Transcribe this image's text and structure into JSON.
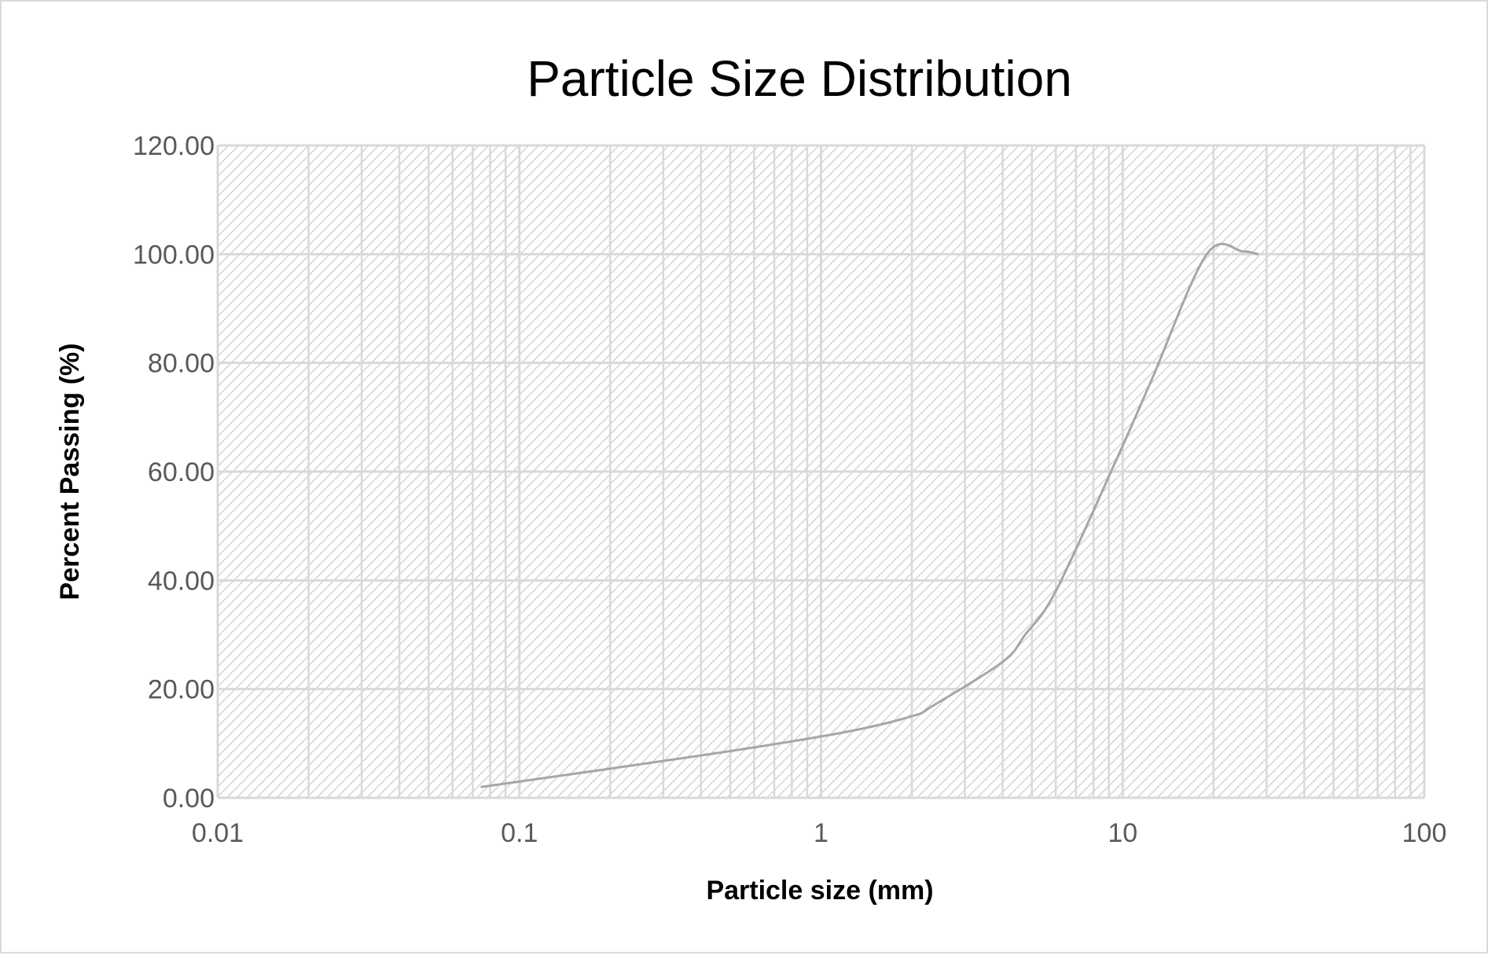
{
  "chart_data": {
    "type": "line",
    "title": "Particle Size Distribution",
    "xlabel": "Particle size (mm)",
    "ylabel": "Percent Passing (%)",
    "x_scale": "log",
    "xlim": [
      0.01,
      100
    ],
    "ylim": [
      0,
      120
    ],
    "x_ticks": [
      0.01,
      0.1,
      1,
      10,
      100
    ],
    "x_tick_labels": [
      "0.01",
      "0.1",
      "1",
      "10",
      "100"
    ],
    "y_ticks": [
      0,
      20,
      40,
      60,
      80,
      100,
      120
    ],
    "y_tick_labels": [
      "0.00",
      "20.00",
      "40.00",
      "60.00",
      "80.00",
      "100.00",
      "120.00"
    ],
    "grid": true,
    "minor_grid": true,
    "legend": "none",
    "plot_fill": "diagonal hatch",
    "series": [
      {
        "color": "#a6a6a6",
        "smooth": true,
        "x": [
          0.075,
          0.425,
          1.18,
          2.0,
          2.36,
          4.0,
          4.75,
          6.0,
          9.5,
          12.5,
          19.0,
          25.0,
          28.0
        ],
        "y": [
          2.0,
          8.0,
          12.0,
          15.0,
          17.0,
          25.0,
          30.0,
          38.0,
          62.0,
          77.0,
          100.0,
          100.5,
          100.0
        ]
      }
    ]
  }
}
